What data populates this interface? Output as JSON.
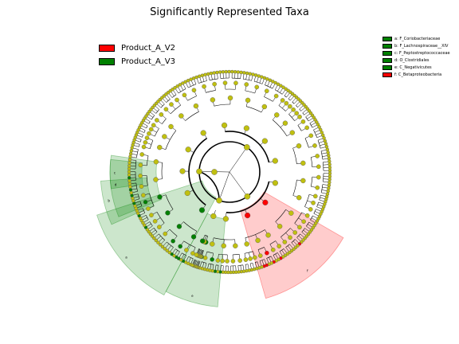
{
  "title": "Significantly Represented Taxa",
  "colors": {
    "Product_A_V2": "#ff0000",
    "Product_A_V3": "#008000",
    "node": "#c0c010",
    "text": "#000000"
  },
  "class_legend": [
    {
      "name": "Product_A_V2",
      "color": "#ff0000"
    },
    {
      "name": "Product_A_V3",
      "color": "#008000"
    }
  ],
  "taxa_legend": [
    {
      "label": "a: F_Coriobacteriaceae",
      "color": "#008000"
    },
    {
      "label": "b: F_Lachnospiraceae__XIV",
      "color": "#008000"
    },
    {
      "label": "c: F_Peptostreptococcaceae",
      "color": "#008000"
    },
    {
      "label": "d: O_Clostridiales",
      "color": "#008000"
    },
    {
      "label": "e: C_Negativicutes",
      "color": "#008000"
    },
    {
      "label": "f: C_Betaproteobacteria",
      "color": "#ff0000"
    }
  ],
  "highlight_letters": [
    "a",
    "b",
    "c",
    "d",
    "e",
    "f"
  ]
}
